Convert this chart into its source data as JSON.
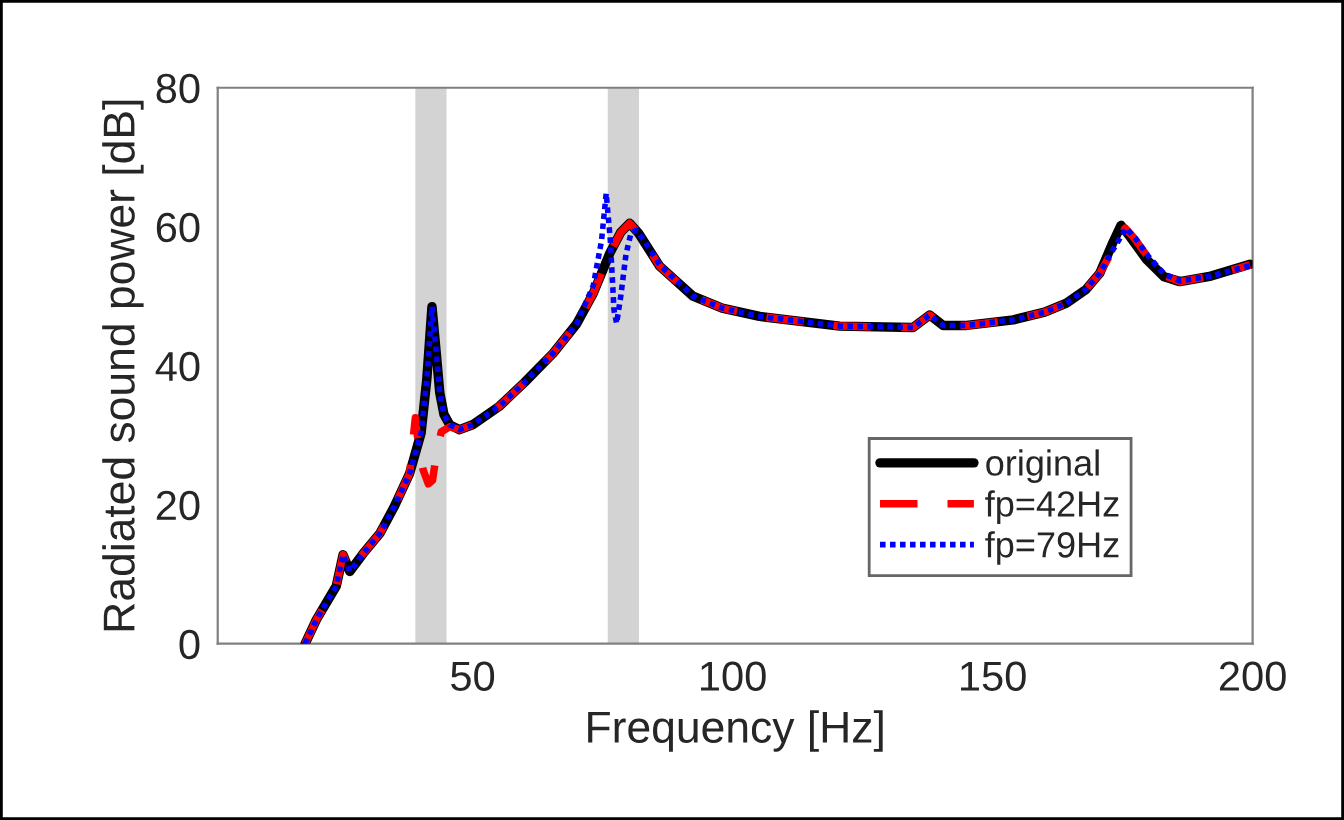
{
  "chart_data": {
    "type": "line",
    "xlabel": "Frequency [Hz]",
    "ylabel": "Radiated sound power [dB]",
    "xlim": [
      1,
      200
    ],
    "xticks": [
      50,
      100,
      150,
      200
    ],
    "ylim": [
      0,
      80
    ],
    "yticks": [
      0,
      20,
      40,
      60,
      80
    ],
    "grid": false,
    "legend": "bottom right",
    "bands": [
      {
        "axis": "x",
        "from": 39,
        "to": 45,
        "color": "#d3d3d3"
      },
      {
        "axis": "x",
        "from": 76,
        "to": 82,
        "color": "#d3d3d3"
      }
    ],
    "series": [
      {
        "name": "original",
        "color": "#000000",
        "line_style": "solid",
        "x": [
          17.8,
          20,
          23.8,
          25.1,
          26.4,
          29,
          32.2,
          35,
          37.9,
          40.1,
          41.2,
          42.2,
          43,
          43.7,
          44.5,
          45.6,
          47.5,
          50,
          55.2,
          60,
          65.5,
          70,
          73.2,
          76.4,
          78.5,
          80.2,
          82,
          86,
          92.4,
          98,
          105.2,
          120.6,
          134.7,
          137.9,
          140.5,
          145,
          154,
          160,
          164.2,
          168,
          170.6,
          173,
          174.7,
          176.5,
          179.6,
          183,
          186,
          192,
          199.5
        ],
        "values": [
          0,
          3.5,
          8.3,
          12.8,
          10.4,
          13,
          15.9,
          19.8,
          24.5,
          30.3,
          38,
          48.5,
          42,
          36.1,
          33,
          31.5,
          30.8,
          31.5,
          34.2,
          37.6,
          41.8,
          46,
          50.4,
          56.2,
          59.2,
          60.5,
          59,
          54.3,
          50,
          48.3,
          47.1,
          45.7,
          45.5,
          47.3,
          45.8,
          45.8,
          46.6,
          47.7,
          49,
          51,
          53.3,
          57.5,
          60.2,
          58.5,
          55.3,
          52.8,
          52.1,
          52.9,
          54.6
        ]
      },
      {
        "name": "fp=42Hz",
        "color": "#ff0000",
        "line_style": "dashed",
        "x": [
          17.8,
          20,
          23.8,
          25.1,
          26.4,
          29,
          32.2,
          35,
          37.9,
          38.5,
          39.0,
          39.7,
          40.5,
          41.5,
          42.3,
          43.2,
          44.0,
          45.6,
          47.5,
          50,
          55.2,
          60,
          65.5,
          70,
          73.2,
          76.4,
          78.5,
          80.2,
          82,
          86,
          92.4,
          98,
          105.2,
          120.6,
          134.7,
          137.9,
          140.5,
          145,
          154,
          160,
          164.2,
          168,
          170.6,
          173,
          175.5,
          177.3,
          180,
          183,
          186,
          192,
          199.5
        ],
        "values": [
          0,
          3.5,
          8.3,
          12.8,
          10.4,
          13,
          15.9,
          19.8,
          24.5,
          29,
          32.5,
          28,
          25,
          23,
          23.5,
          28,
          30.5,
          31.2,
          30.8,
          31.5,
          34.2,
          37.6,
          41.8,
          46,
          50.4,
          56.2,
          59.2,
          60.5,
          59,
          54.3,
          50,
          48.3,
          47.1,
          45.7,
          45.5,
          47.3,
          45.8,
          45.8,
          46.6,
          47.7,
          49,
          51,
          53.3,
          56.5,
          59.8,
          58.3,
          55.5,
          53,
          52.1,
          52.9,
          54.5
        ]
      },
      {
        "name": "fp=79Hz",
        "color": "#0000ff",
        "line_style": "dotted",
        "x": [
          17.8,
          20,
          23.8,
          25.1,
          26.4,
          29,
          32.2,
          35,
          37.9,
          40.1,
          41.2,
          42.2,
          43,
          43.7,
          44.5,
          45.6,
          47.5,
          50,
          55.2,
          60,
          65.5,
          70,
          73.2,
          74.8,
          75.7,
          76.5,
          77.2,
          77.7,
          78.5,
          79.5,
          80.5,
          81.5,
          83,
          86,
          92.4,
          98,
          105.2,
          120.6,
          134.7,
          137.9,
          140.5,
          145,
          154,
          160,
          164.2,
          168,
          170.6,
          173,
          175.7,
          177.5,
          180,
          183,
          186,
          192,
          199.5
        ],
        "values": [
          0,
          3.5,
          8.3,
          12.8,
          10.4,
          13,
          15.9,
          19.8,
          24.5,
          30.3,
          38,
          48.5,
          42,
          36.1,
          33,
          31.5,
          30.8,
          31.5,
          34.2,
          37.6,
          41.8,
          46,
          51.5,
          58,
          64.8,
          58,
          48,
          46.1,
          50,
          56,
          59.2,
          59.5,
          58,
          54.5,
          50,
          48.3,
          47.1,
          45.7,
          45.5,
          47.3,
          45.8,
          45.8,
          46.6,
          47.7,
          49,
          51,
          53.3,
          56.5,
          59.8,
          58.3,
          55.7,
          53.2,
          52.2,
          52.9,
          54.4
        ]
      }
    ]
  }
}
